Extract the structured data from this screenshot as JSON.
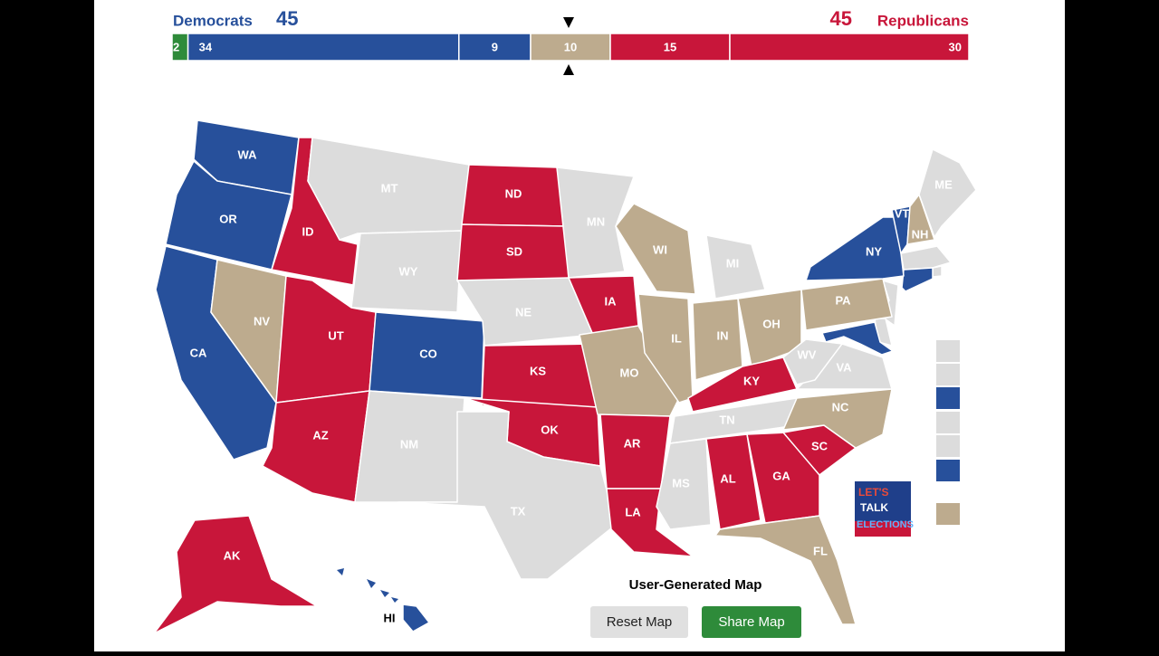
{
  "header": {
    "left_label": "Democrats",
    "left_total": 45,
    "right_total": 45,
    "right_label": "Republicans"
  },
  "seat_bar": {
    "segments": [
      {
        "value": 2,
        "color": "#2e8b3a"
      },
      {
        "value": 34,
        "color": "#27509b"
      },
      {
        "value": 9,
        "color": "#27509b"
      },
      {
        "value": 10,
        "color": "#bdab8e"
      },
      {
        "value": 15,
        "color": "#c8163a"
      },
      {
        "value": 30,
        "color": "#c8163a"
      }
    ]
  },
  "states": [
    {
      "label": "WA",
      "color": "#27509b"
    },
    {
      "label": "OR",
      "color": "#27509b"
    },
    {
      "label": "CA",
      "color": "#27509b"
    },
    {
      "label": "NV",
      "color": "#bdab8e"
    },
    {
      "label": "ID",
      "color": "#c8163a"
    },
    {
      "label": "MT",
      "color": "#dcdcdc"
    },
    {
      "label": "WY",
      "color": "#dcdcdc"
    },
    {
      "label": "UT",
      "color": "#c8163a"
    },
    {
      "label": "CO",
      "color": "#27509b"
    },
    {
      "label": "AZ",
      "color": "#c8163a"
    },
    {
      "label": "NM",
      "color": "#dcdcdc"
    },
    {
      "label": "ND",
      "color": "#c8163a"
    },
    {
      "label": "SD",
      "color": "#c8163a"
    },
    {
      "label": "NE",
      "color": "#dcdcdc"
    },
    {
      "label": "KS",
      "color": "#c8163a"
    },
    {
      "label": "OK",
      "color": "#c8163a"
    },
    {
      "label": "TX",
      "color": "#dcdcdc"
    },
    {
      "label": "MN",
      "color": "#dcdcdc"
    },
    {
      "label": "IA",
      "color": "#c8163a"
    },
    {
      "label": "MO",
      "color": "#bdab8e"
    },
    {
      "label": "AR",
      "color": "#c8163a"
    },
    {
      "label": "LA",
      "color": "#c8163a"
    },
    {
      "label": "WI",
      "color": "#bdab8e"
    },
    {
      "label": "IL",
      "color": "#bdab8e"
    },
    {
      "label": "MI",
      "color": "#dcdcdc"
    },
    {
      "label": "IN",
      "color": "#bdab8e"
    },
    {
      "label": "OH",
      "color": "#bdab8e"
    },
    {
      "label": "KY",
      "color": "#c8163a"
    },
    {
      "label": "TN",
      "color": "#dcdcdc"
    },
    {
      "label": "MS",
      "color": "#dcdcdc"
    },
    {
      "label": "AL",
      "color": "#c8163a"
    },
    {
      "label": "GA",
      "color": "#c8163a"
    },
    {
      "label": "FL",
      "color": "#bdab8e"
    },
    {
      "label": "SC",
      "color": "#c8163a"
    },
    {
      "label": "NC",
      "color": "#bdab8e"
    },
    {
      "label": "VA",
      "color": "#dcdcdc"
    },
    {
      "label": "WV",
      "color": "#dcdcdc"
    },
    {
      "label": "PA",
      "color": "#bdab8e"
    },
    {
      "label": "NY",
      "color": "#27509b"
    },
    {
      "label": "VT",
      "color": "#27509b"
    },
    {
      "label": "NH",
      "color": "#bdab8e"
    },
    {
      "label": "ME",
      "color": "#dcdcdc"
    },
    {
      "label": "AK",
      "color": "#c8163a"
    },
    {
      "label": "HI",
      "color": "#27509b"
    }
  ],
  "map_caption": "User-Generated Map",
  "buttons": {
    "reset": "Reset Map",
    "share": "Share Map"
  },
  "logo": {
    "lines": [
      "LET'S",
      "TALK",
      "ELECTIONS"
    ]
  }
}
